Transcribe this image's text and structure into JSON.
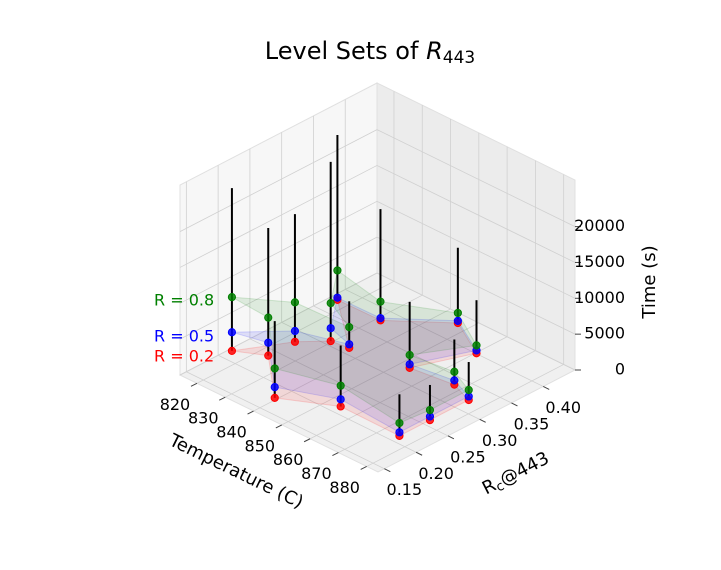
{
  "chart_data": {
    "type": "scatter3d",
    "title": [
      "Level Sets of ",
      "R",
      "443"
    ],
    "xlabel": "Temperature (C)",
    "ylabel": [
      "R",
      "c",
      "@443"
    ],
    "zlabel": "Time (s)",
    "x": [
      820,
      827,
      827,
      843,
      858,
      832,
      820,
      839,
      835,
      857,
      879,
      879,
      871,
      879,
      850,
      864
    ],
    "y": [
      0.195,
      0.221,
      0.263,
      0.16,
      0.197,
      0.297,
      0.361,
      0.295,
      0.362,
      0.31,
      0.196,
      0.244,
      0.318,
      0.305,
      0.417,
      0.384
    ],
    "series": [
      {
        "name": "R = 0.2",
        "color": "#ff0000",
        "values": [
          2000,
          1500,
          1500,
          1500,
          1500,
          1000,
          1500,
          1500,
          1500,
          1500,
          1500,
          1500,
          1500,
          1500,
          1500,
          1500
        ]
      },
      {
        "name": "R = 0.5",
        "color": "#0000ff",
        "values": [
          4600,
          3300,
          3000,
          3000,
          2500,
          2800,
          1800,
          2000,
          1800,
          2000,
          2000,
          2000,
          2100,
          2000,
          1800,
          1900
        ]
      },
      {
        "name": "R = 0.8",
        "color": "#008000",
        "values": [
          9500,
          6800,
          7000,
          5600,
          4400,
          6300,
          5600,
          4400,
          4100,
          3300,
          3300,
          2900,
          3300,
          2900,
          2900,
          2600
        ]
      }
    ],
    "stems": [
      24700,
      19300,
      19300,
      12200,
      10000,
      26000,
      24500,
      8000,
      17000,
      10700,
      7300,
      6400,
      7800,
      6800,
      12000,
      8900
    ],
    "stem_color": "#000000",
    "xlim": [
      814,
      884
    ],
    "ylim": [
      0.14,
      0.45
    ],
    "zlim": [
      0,
      26500
    ],
    "xticks": [
      820,
      830,
      840,
      850,
      860,
      870,
      880
    ],
    "yticks": [
      0.15,
      {
        "value": 0.2,
        "label": "0.20"
      },
      0.25,
      {
        "value": 0.3,
        "label": "0.30"
      },
      0.35,
      {
        "value": 0.4,
        "label": "0.40"
      }
    ],
    "zticks": [
      0,
      5000,
      10000,
      15000,
      20000
    ],
    "grid": true
  }
}
